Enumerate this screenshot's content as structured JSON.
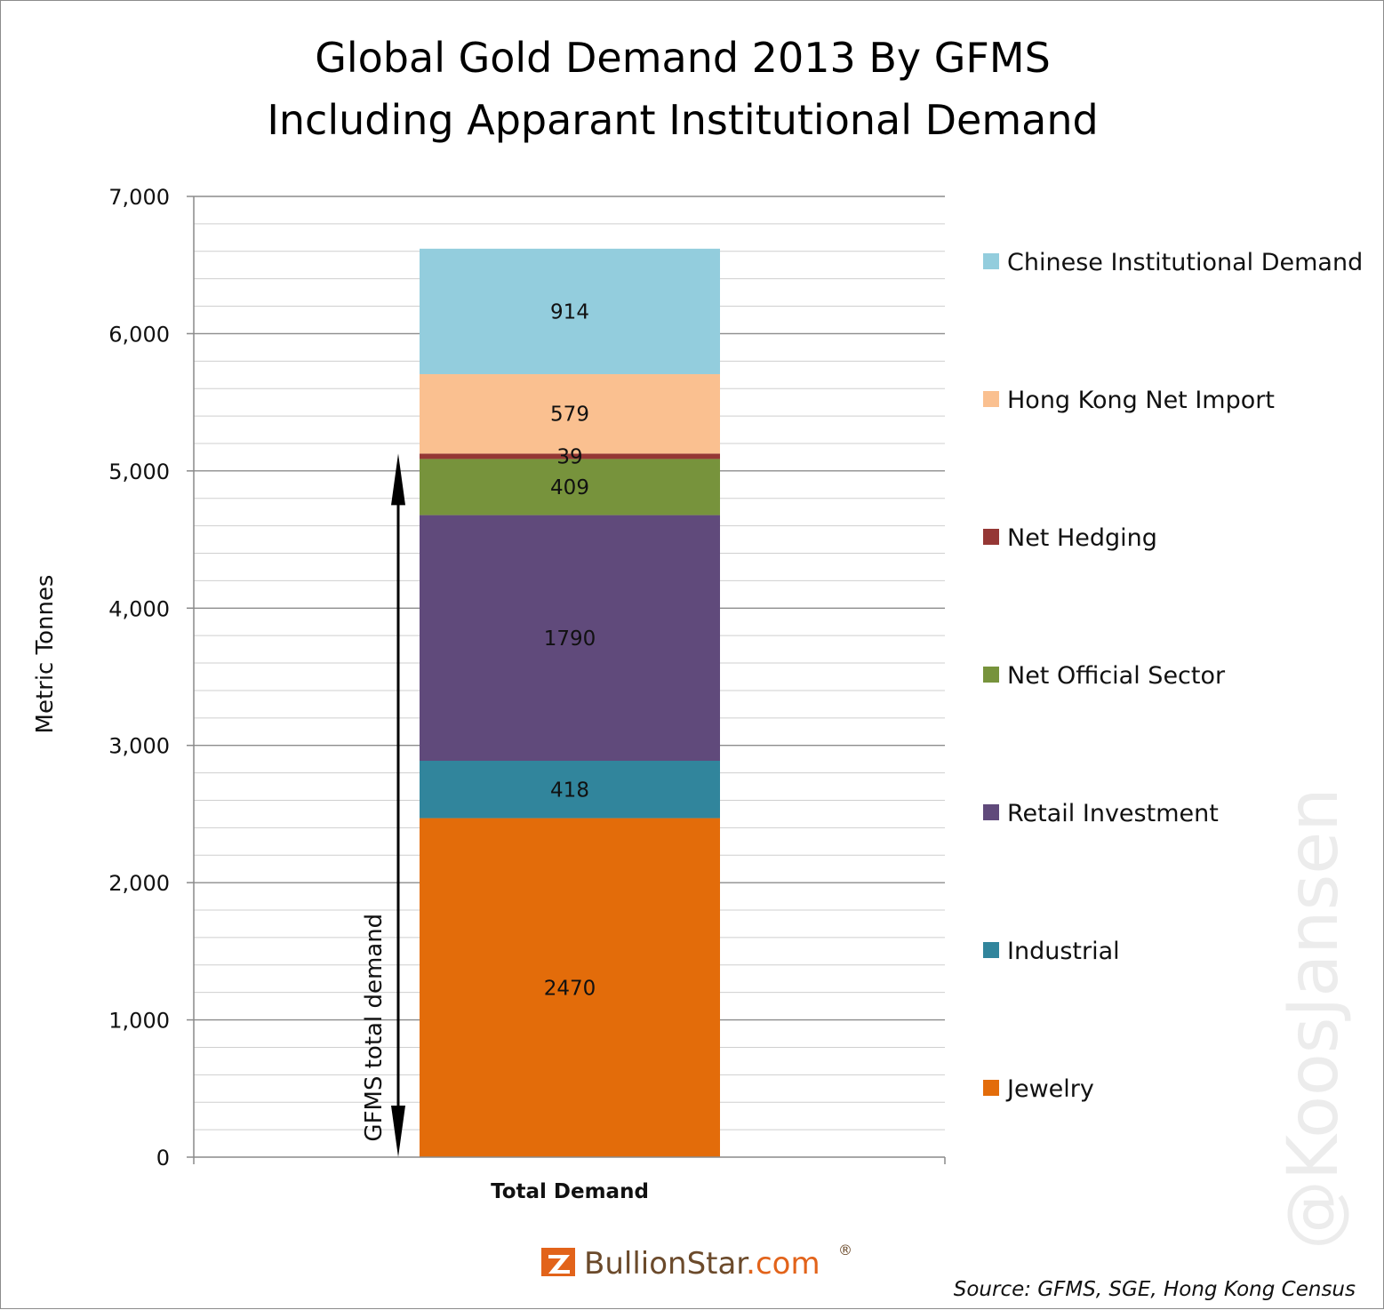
{
  "chart_data": {
    "type": "bar",
    "stacked": true,
    "title": [
      "Global Gold Demand 2013 By GFMS",
      "Including Apparant Institutional Demand"
    ],
    "ylabel": "Metric Tonnes",
    "xlabel": "",
    "categories": [
      "Total Demand"
    ],
    "ylim": [
      0,
      7000
    ],
    "yticks": [
      0,
      1000,
      2000,
      3000,
      4000,
      5000,
      6000,
      7000
    ],
    "ytick_labels": [
      "0",
      "1,000",
      "2,000",
      "3,000",
      "4,000",
      "5,000",
      "6,000",
      "7,000"
    ],
    "grid": true,
    "legend_position": "right",
    "series": [
      {
        "name": "Jewelry",
        "values": [
          2470
        ],
        "label": "2470",
        "color": "#e36c0a"
      },
      {
        "name": "Industrial",
        "values": [
          418
        ],
        "label": "418",
        "color": "#31859c"
      },
      {
        "name": "Retail Investment",
        "values": [
          1790
        ],
        "label": "1790",
        "color": "#604a7b"
      },
      {
        "name": "Net Official Sector",
        "values": [
          409
        ],
        "label": "409",
        "color": "#77933c"
      },
      {
        "name": "Net Hedging",
        "values": [
          39
        ],
        "label": "39",
        "color": "#953735"
      },
      {
        "name": "Hong Kong Net Import",
        "values": [
          579
        ],
        "label": "579",
        "color": "#fac090"
      },
      {
        "name": "Chinese Institutional Demand",
        "values": [
          914
        ],
        "label": "914",
        "color": "#93cddd"
      }
    ],
    "annotation": {
      "text": "GFMS total demand",
      "from": 0,
      "to": 5126
    }
  },
  "source": "Source: GFMS, SGE, Hong Kong Census",
  "watermark": "@KoosJansen",
  "logo": {
    "text_main": "BullionStar",
    "text_tld": ".com",
    "mark": "®"
  }
}
